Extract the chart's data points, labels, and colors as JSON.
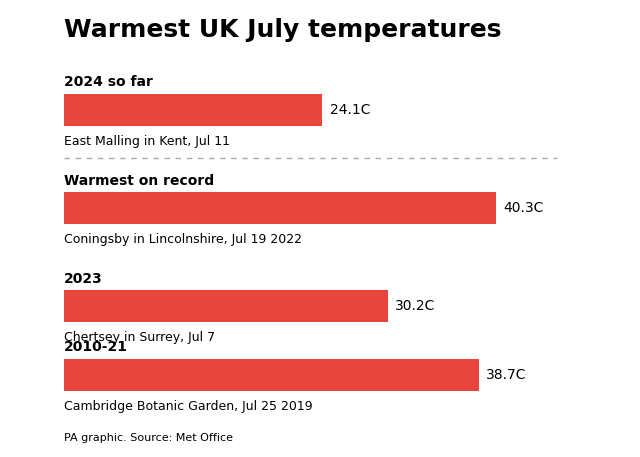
{
  "title": "Warmest UK July temperatures",
  "bar_color": "#E8453C",
  "background_color": "#ffffff",
  "categories": [
    {
      "label": "2024 so far",
      "value": 24.1,
      "value_label": "24.1C",
      "sublabel": "East Malling in Kent, Jul 11"
    },
    {
      "label": "Warmest on record",
      "value": 40.3,
      "value_label": "40.3C",
      "sublabel": "Coningsby in Lincolnshire, Jul 19 2022"
    },
    {
      "label": "2023",
      "value": 30.2,
      "value_label": "30.2C",
      "sublabel": "Chertsey in Surrey, Jul 7"
    },
    {
      "label": "2010-21",
      "value": 38.7,
      "value_label": "38.7C",
      "sublabel": "Cambridge Botanic Garden, Jul 25 2019"
    }
  ],
  "max_value": 43,
  "source_text": "PA graphic. Source: Met Office",
  "divider_after_index": 0,
  "title_fontsize": 18,
  "label_fontsize": 10,
  "sublabel_fontsize": 9,
  "value_fontsize": 10,
  "source_fontsize": 8
}
